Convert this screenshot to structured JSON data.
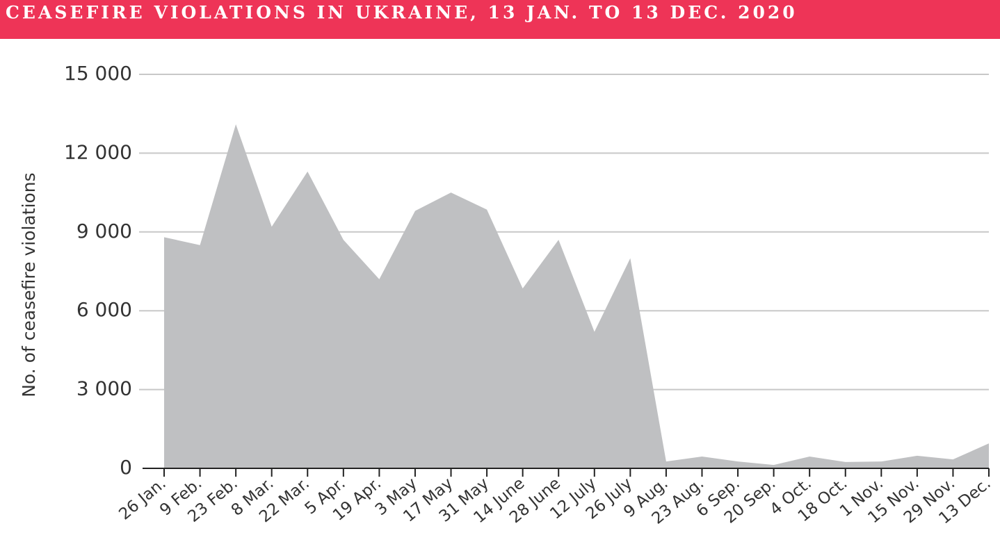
{
  "chart_data": {
    "type": "area",
    "title": "CEASEFIRE VIOLATIONS IN UKRAINE, 13 JAN. TO 13 DEC. 2020",
    "y_label": "No. of ceasefire violations",
    "categories": [
      "26 Jan.",
      "9 Feb.",
      "23 Feb.",
      "8 Mar.",
      "22 Mar.",
      "5 Apr.",
      "19 Apr.",
      "3 May",
      "17 May",
      "31 May",
      "14 June",
      "28 June",
      "12 July",
      "26 July",
      "9 Aug.",
      "23 Aug.",
      "6 Sep.",
      "20 Sep.",
      "4 Oct.",
      "18 Oct.",
      "1 Nov.",
      "15 Nov.",
      "29 Nov.",
      "13 Dec."
    ],
    "values": [
      8800,
      8500,
      13100,
      9200,
      11300,
      8700,
      7200,
      9800,
      10500,
      9850,
      6850,
      8700,
      5200,
      8000,
      260,
      450,
      260,
      130,
      450,
      240,
      260,
      480,
      340,
      950
    ],
    "color": "#bfc0c2",
    "ylim": [
      0,
      15000
    ],
    "yticks": [
      0,
      {
        "value": 3000,
        "label": "3 000"
      },
      {
        "value": 6000,
        "label": "6 000"
      },
      {
        "value": 9000,
        "label": "9 000"
      },
      {
        "value": 12000,
        "label": "12 000"
      },
      {
        "value": 15000,
        "label": "15 000"
      }
    ],
    "grid": true
  }
}
